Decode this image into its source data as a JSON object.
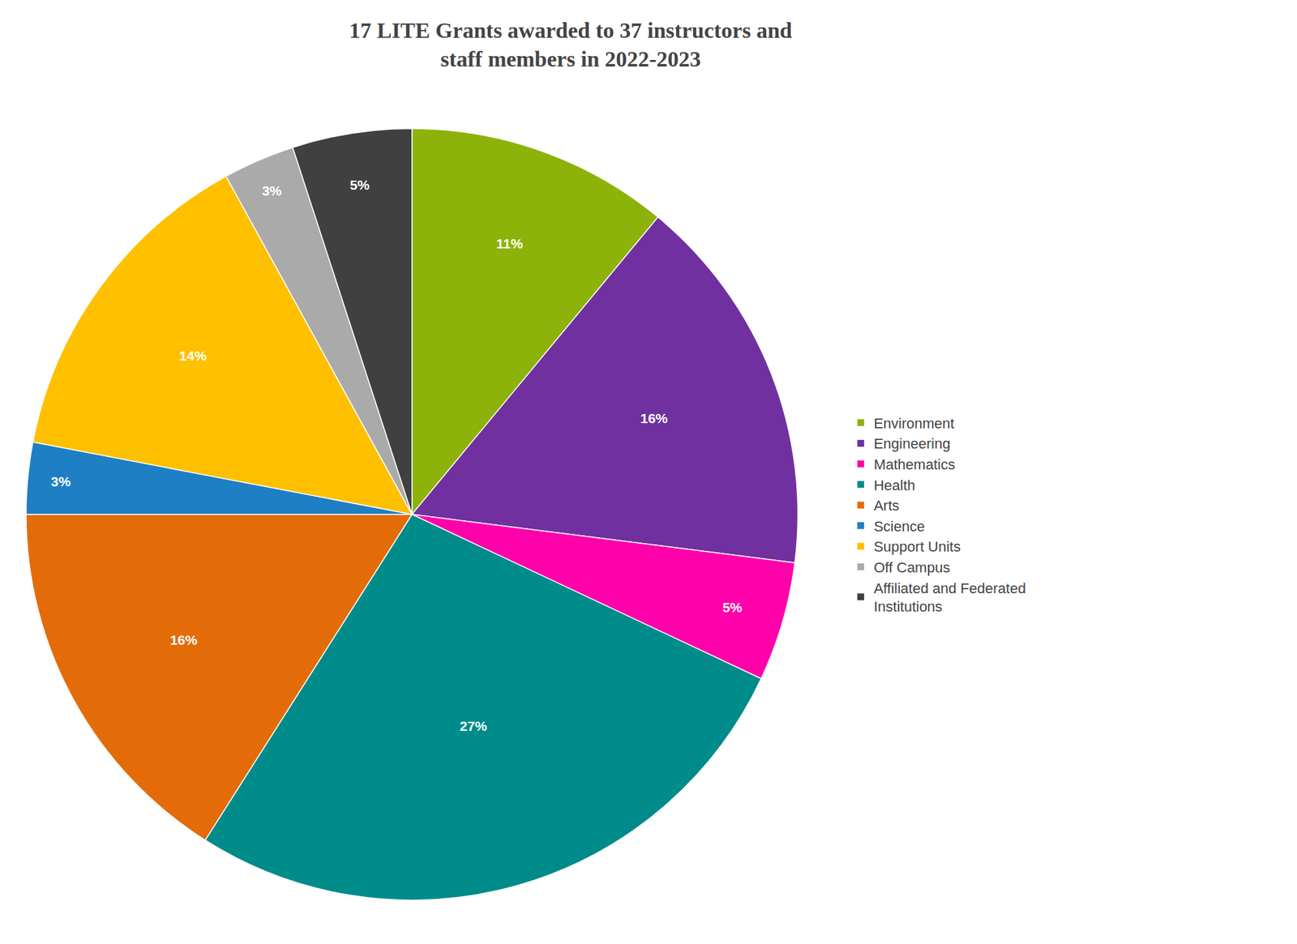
{
  "chart_data": {
    "type": "pie",
    "title": "17 LITE Grants awarded to 37 instructors and\nstaff members in 2022-2023",
    "categories": [
      "Environment",
      "Engineering",
      "Mathematics",
      "Health",
      "Arts",
      "Science",
      "Support Units",
      "Off Campus",
      "Affiliated and Federated\nInstitutions"
    ],
    "values": [
      11,
      16,
      5,
      27,
      16,
      3,
      14,
      3,
      5
    ],
    "value_labels": [
      "11%",
      "16%",
      "5%",
      "27%",
      "16%",
      "3%",
      "14%",
      "3%",
      "5%"
    ],
    "colors": [
      "#8db30a",
      "#7030a0",
      "#ff00aa",
      "#008b8b",
      "#e36c09",
      "#1f7fc4",
      "#ffc000",
      "#aaaaaa",
      "#404040"
    ],
    "data_labels": true,
    "legend": "right"
  }
}
